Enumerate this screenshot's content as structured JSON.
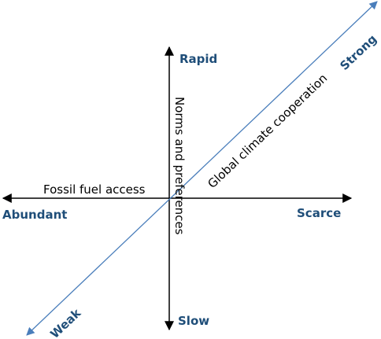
{
  "axes": [
    {
      "label": "Fossil fuel access",
      "low": "Abundant",
      "high": "Scarce"
    },
    {
      "label": "Norms and preferences",
      "low": "Slow",
      "high": "Rapid"
    },
    {
      "label": "Global climate cooperation",
      "low": "Weak",
      "high": "Strong"
    }
  ]
}
